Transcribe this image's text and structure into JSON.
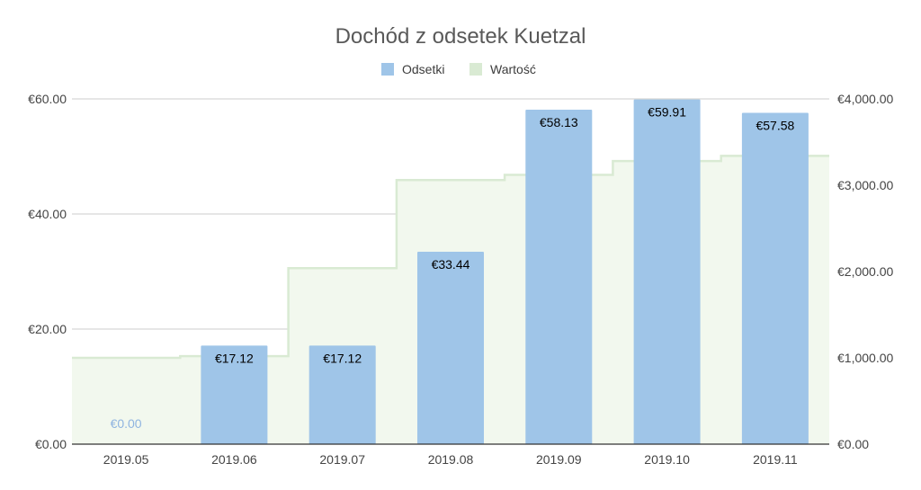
{
  "chart_data": {
    "type": "bar",
    "title": "Dochód z odsetek  Kuetzal",
    "legend_position": "top",
    "categories": [
      "2019.05",
      "2019.06",
      "2019.07",
      "2019.08",
      "2019.09",
      "2019.10",
      "2019.11"
    ],
    "series": [
      {
        "name": "Odsetki",
        "type": "bar",
        "axis": "left",
        "color": "#9fc5e8",
        "values": [
          0.0,
          17.12,
          17.12,
          33.44,
          58.13,
          59.91,
          57.58
        ],
        "labels": [
          "€0.00",
          "€17.12",
          "€17.12",
          "€33.44",
          "€58.13",
          "€59.91",
          "€57.58"
        ]
      },
      {
        "name": "Wartość",
        "type": "stepped-area",
        "axis": "right",
        "color": "#d9ead3",
        "values": [
          1000,
          1020,
          2040,
          3060,
          3120,
          3280,
          3340
        ]
      }
    ],
    "y_left": {
      "min": 0,
      "max": 60,
      "ticks": [
        "€0.00",
        "€20.00",
        "€40.00",
        "€60.00"
      ],
      "tick_values": [
        0,
        20,
        40,
        60
      ]
    },
    "y_right": {
      "min": 0,
      "max": 4000,
      "ticks": [
        "€0.00",
        "€1,000.00",
        "€2,000.00",
        "€3,000.00",
        "€4,000.00"
      ],
      "tick_values": [
        0,
        1000,
        2000,
        3000,
        4000
      ]
    },
    "grid": true
  }
}
